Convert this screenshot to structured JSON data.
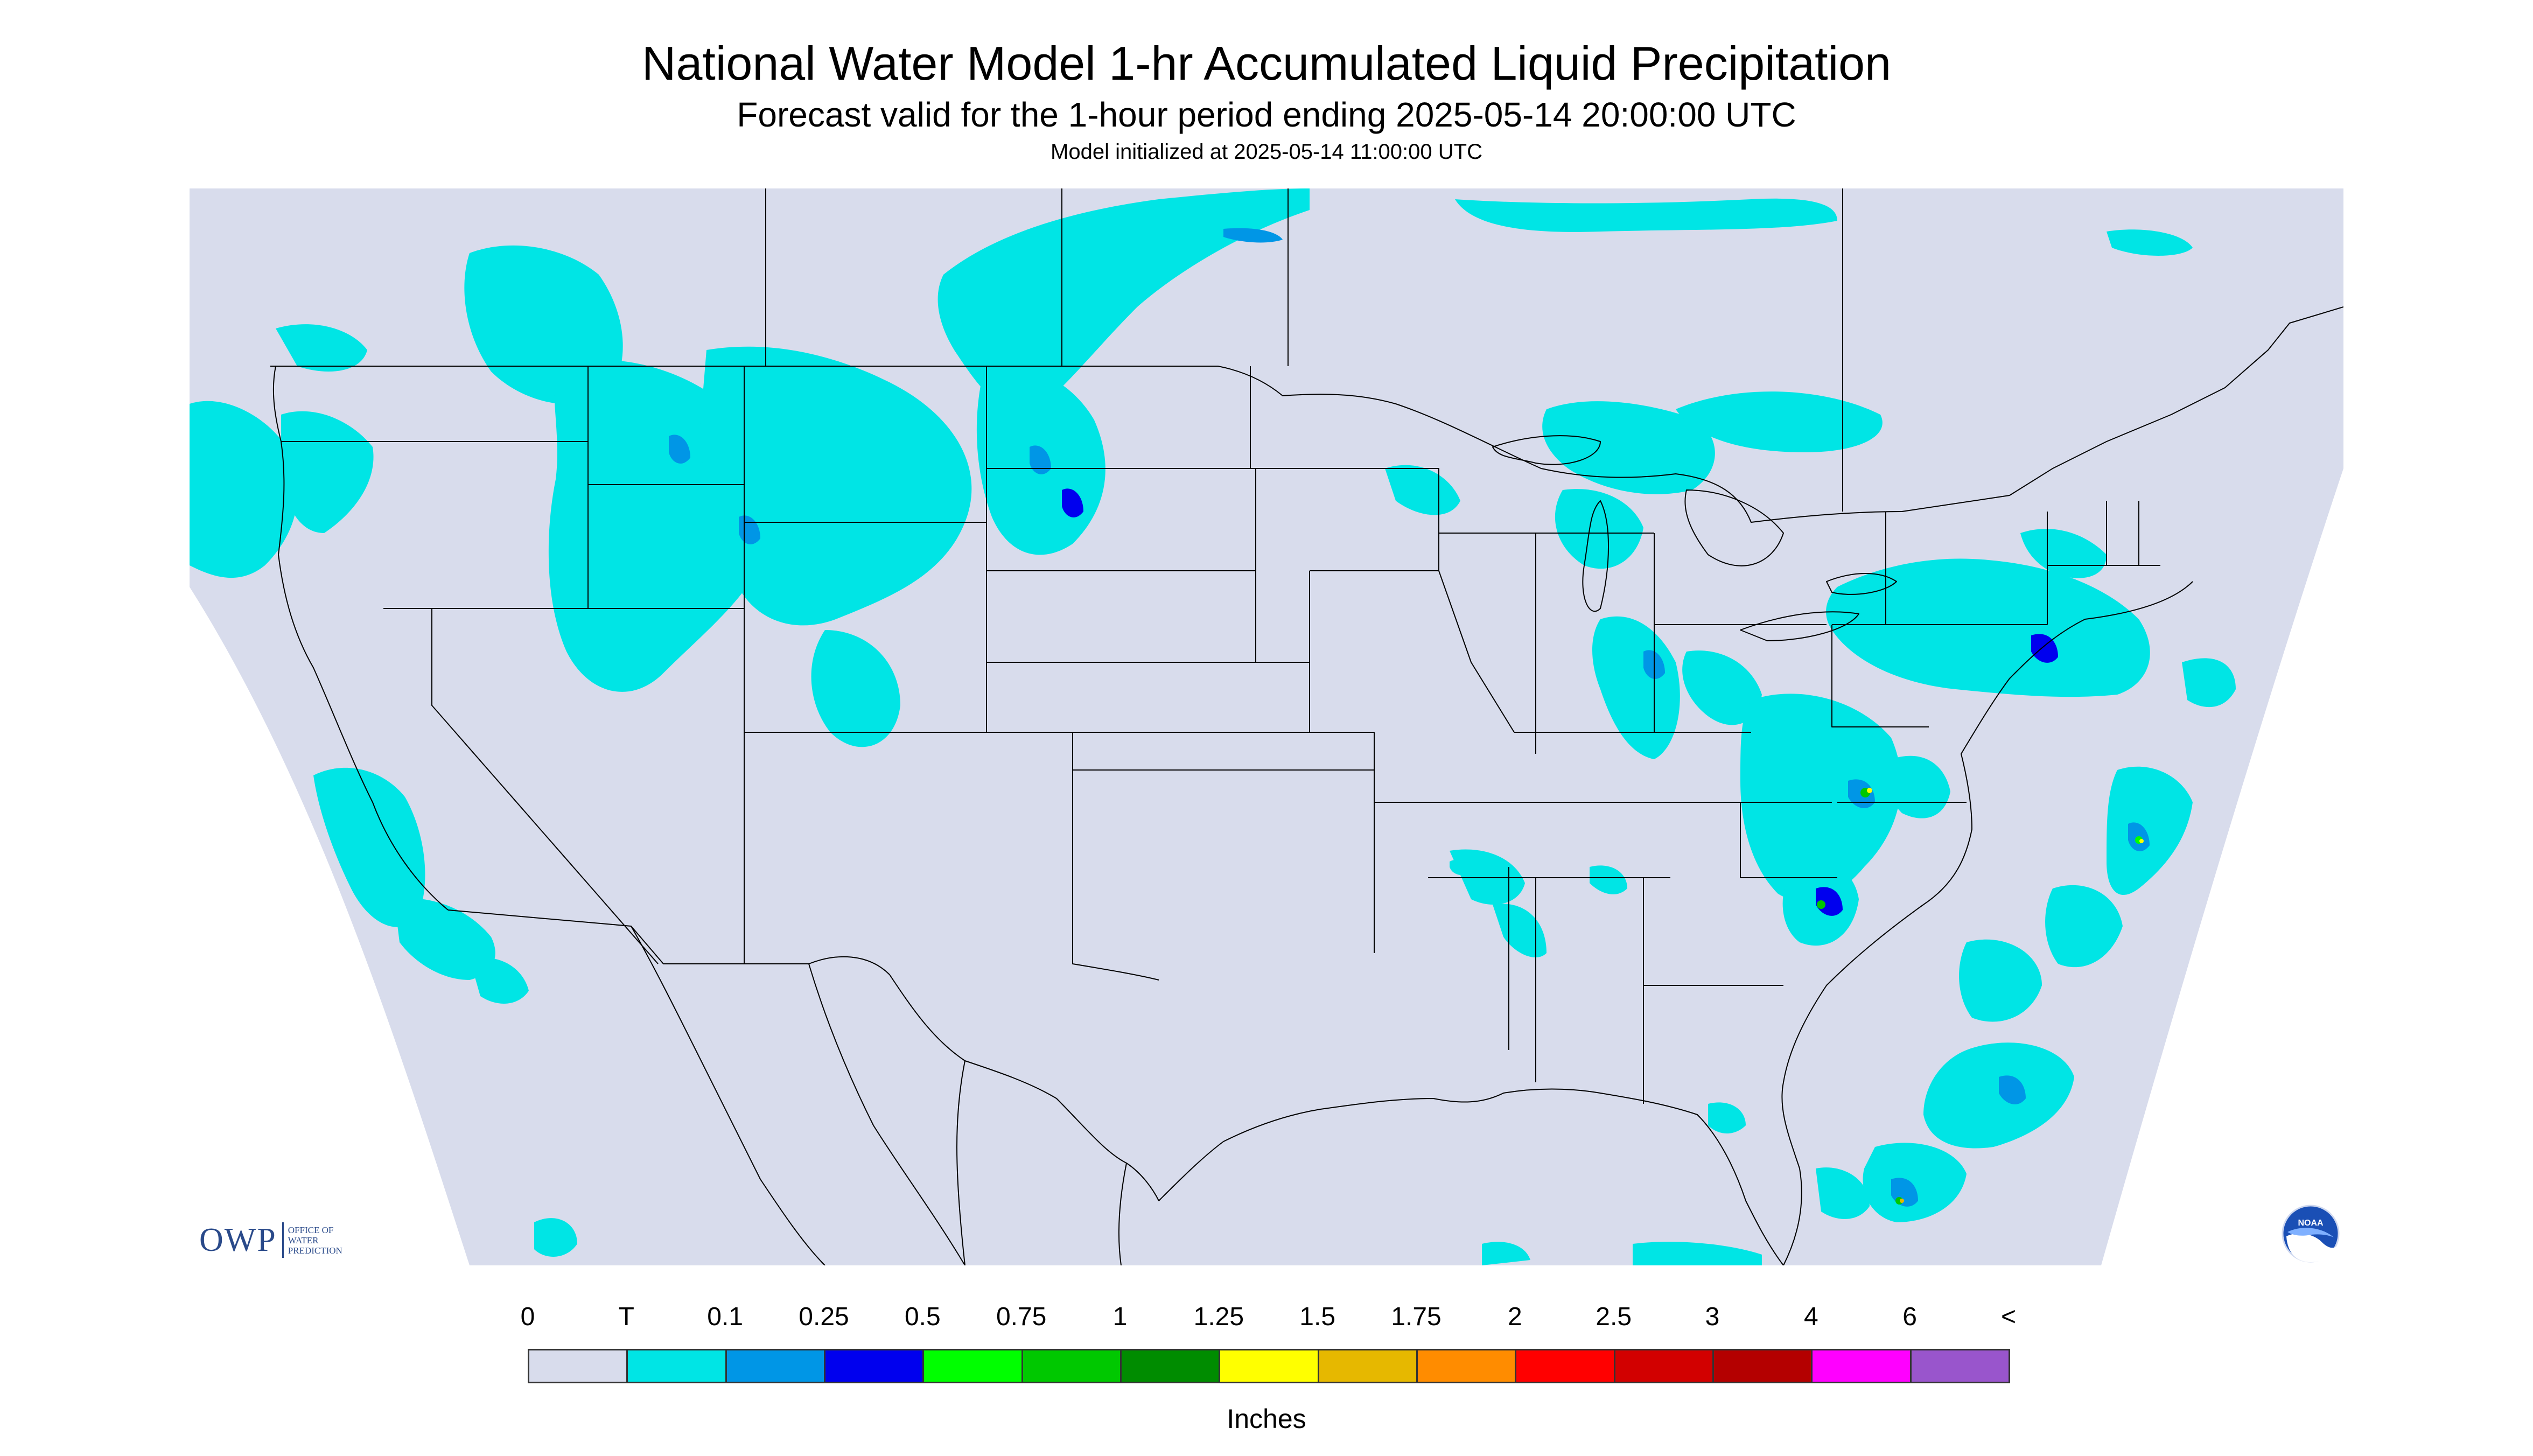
{
  "header": {
    "title": "National Water Model 1-hr Accumulated Liquid Precipitation",
    "subtitle": "Forecast valid for the 1-hour period ending 2025-05-14 20:00:00 UTC",
    "init": "Model initialized at 2025-05-14 11:00:00 UTC"
  },
  "legend": {
    "units": "Inches",
    "labels": [
      "0",
      "T",
      "0.1",
      "0.25",
      "0.5",
      "0.75",
      "1",
      "1.25",
      "1.5",
      "1.75",
      "2",
      "2.5",
      "3",
      "4",
      "6",
      "<"
    ],
    "colors": [
      "#d8dcec",
      "#00e5e5",
      "#0096e6",
      "#0000ee",
      "#00ff00",
      "#00c800",
      "#008c00",
      "#ffff00",
      "#e6b800",
      "#ff8c00",
      "#ff0000",
      "#d20000",
      "#b40000",
      "#ff00ff",
      "#9955cc"
    ]
  },
  "logos": {
    "owp_mark": "OWP",
    "owp_text": "OFFICE OF\nWATER\nPREDICTION",
    "noaa_text": "NOAA"
  },
  "map": {
    "background": "#d8dcec",
    "outside": "#ffffff",
    "boundary_color": "#000000",
    "precip_regions_description": "Light precipitation (T to 0.1 in) over the northern Rockies, northern Plains, Great Lakes, Ohio Valley, mid-Atlantic, Northeast and western Atlantic; isolated heavier cores in the Carolinas and off the Southeast coast."
  }
}
